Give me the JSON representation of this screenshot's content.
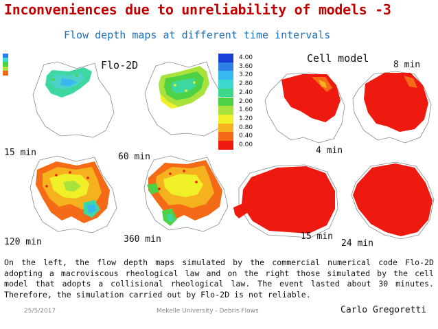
{
  "slide": {
    "title": "Inconveniences due to unreliability of models -3",
    "subtitle": "Flow depth maps at different time intervals",
    "left_header": "Flo-2D",
    "right_header": "Cell model"
  },
  "maps": [
    {
      "id": "flo2d-15",
      "time_label": "15 min",
      "model": "Flo-2D"
    },
    {
      "id": "flo2d-60",
      "time_label": "60 min",
      "model": "Flo-2D"
    },
    {
      "id": "flo2d-120",
      "time_label": "120 min",
      "model": "Flo-2D"
    },
    {
      "id": "flo2d-360",
      "time_label": "360 min",
      "model": "Flo-2D"
    },
    {
      "id": "cell-4",
      "time_label": "4 min",
      "model": "Cell model"
    },
    {
      "id": "cell-8",
      "time_label": "8 min",
      "model": "Cell model"
    },
    {
      "id": "cell-15",
      "time_label": "15 min",
      "model": "Cell model"
    },
    {
      "id": "cell-24",
      "time_label": "24 min",
      "model": "Cell model"
    }
  ],
  "legend": {
    "entries": [
      {
        "label": "4.00",
        "color": "#1a3fd6"
      },
      {
        "label": "3.60",
        "color": "#2f7fe8"
      },
      {
        "label": "3.20",
        "color": "#38b8f0"
      },
      {
        "label": "2.80",
        "color": "#3dd8d0"
      },
      {
        "label": "2.40",
        "color": "#3ed88a"
      },
      {
        "label": "2.00",
        "color": "#4cd244"
      },
      {
        "label": "1.60",
        "color": "#a8e23a"
      },
      {
        "label": "1.20",
        "color": "#f0f028"
      },
      {
        "label": "0.80",
        "color": "#f6b21e"
      },
      {
        "label": "0.40",
        "color": "#f46a16"
      },
      {
        "label": "0.00",
        "color": "#ee1a10"
      }
    ]
  },
  "caption": "On the left, the flow depth maps simulated by the commercial numerical code Flo-2D adopting a macroviscous rheological law and on the right those simulated by the cell model that adopts a collisional rheological law. The event lasted about 30 minutes. Therefore, the simulation carried out by Flo-2D is not reliable.",
  "footer": {
    "date": "25/5/2017",
    "center": "Mekelle University - Debris Flows",
    "author": "Carlo Gregoretti"
  },
  "colors": {
    "title": "#c00000",
    "subtitle": "#1f6fb5"
  }
}
